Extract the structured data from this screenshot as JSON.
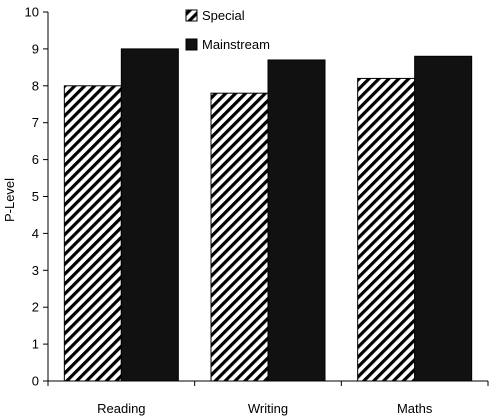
{
  "chart_data": {
    "type": "bar",
    "title": "",
    "xlabel": "",
    "ylabel": "P-Level",
    "ylim": [
      0,
      10
    ],
    "yticks": [
      0,
      1,
      2,
      3,
      4,
      5,
      6,
      7,
      8,
      9,
      10
    ],
    "categories": [
      "Reading",
      "Writing",
      "Maths"
    ],
    "series": [
      {
        "name": "Special",
        "values": [
          8.0,
          7.8,
          8.2
        ],
        "fill": "hatched",
        "color": "#000000"
      },
      {
        "name": "Mainstream",
        "values": [
          9.0,
          8.7,
          8.8
        ],
        "fill": "solid",
        "color": "#111111"
      }
    ],
    "grid": false,
    "legend_position": "top-center"
  }
}
